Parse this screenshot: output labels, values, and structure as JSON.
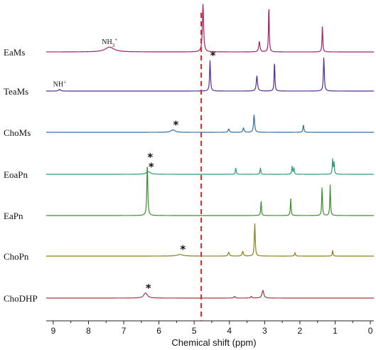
{
  "chart_data": {
    "type": "line",
    "title": "",
    "xlabel": "Chemical shift (ppm)",
    "ylabel": "",
    "xlim": [
      9.2,
      -0.1
    ],
    "x_ticks": [
      "9",
      "8",
      "7",
      "6",
      "5",
      "4",
      "3",
      "2",
      "1",
      "0"
    ],
    "reference_line": {
      "x": 4.8,
      "color": "#e02020",
      "style": "dashed"
    },
    "series": [
      {
        "name": "EaMs",
        "color": "#a0206a",
        "peaks": [
          {
            "x": 7.4,
            "h": 0.1,
            "w": 0.15
          },
          {
            "x": 4.75,
            "h": 1.0,
            "w": 0.02,
            "star": true
          },
          {
            "x": 3.15,
            "h": 0.22,
            "w": 0.02
          },
          {
            "x": 2.88,
            "h": 1.0,
            "w": 0.012
          },
          {
            "x": 1.36,
            "h": 0.55,
            "w": 0.012
          }
        ],
        "annotations": [
          {
            "x": 7.4,
            "text": "NH3+"
          }
        ]
      },
      {
        "name": "TeaMs",
        "color": "#5a2a9a",
        "peaks": [
          {
            "x": 8.82,
            "h": 0.05,
            "w": 0.03
          },
          {
            "x": 4.55,
            "h": 0.9,
            "w": 0.015,
            "star": true
          },
          {
            "x": 3.22,
            "h": 0.45,
            "w": 0.02
          },
          {
            "x": 2.72,
            "h": 0.9,
            "w": 0.012
          },
          {
            "x": 1.32,
            "h": 1.0,
            "w": 0.015
          }
        ],
        "annotations": [
          {
            "x": 8.82,
            "text": "NH+"
          }
        ]
      },
      {
        "name": "ChoMs",
        "color": "#2f6fa6",
        "peaks": [
          {
            "x": 5.6,
            "h": 0.09,
            "w": 0.07,
            "star": true
          },
          {
            "x": 4.02,
            "h": 0.13,
            "w": 0.02
          },
          {
            "x": 3.6,
            "h": 0.16,
            "w": 0.02
          },
          {
            "x": 3.3,
            "h": 0.65,
            "w": 0.018
          },
          {
            "x": 1.9,
            "h": 0.28,
            "w": 0.015
          }
        ]
      },
      {
        "name": "EoaPn",
        "color": "#2a9a78",
        "peaks": [
          {
            "x": 6.3,
            "h": 0.12,
            "w": 0.07,
            "star": true
          },
          {
            "x": 3.82,
            "h": 0.32,
            "w": 0.012
          },
          {
            "x": 3.12,
            "h": 0.32,
            "w": 0.012
          },
          {
            "x": 2.22,
            "h": 0.38,
            "w": 0.012
          },
          {
            "x": 2.17,
            "h": 0.3,
            "w": 0.012
          },
          {
            "x": 1.07,
            "h": 0.7,
            "w": 0.012
          },
          {
            "x": 1.03,
            "h": 0.55,
            "w": 0.012
          }
        ]
      },
      {
        "name": "EaPn",
        "color": "#3a8f2a",
        "peaks": [
          {
            "x": 6.33,
            "h": 1.0,
            "w": 0.015,
            "star": true
          },
          {
            "x": 3.1,
            "h": 0.28,
            "w": 0.012
          },
          {
            "x": 2.26,
            "h": 0.32,
            "w": 0.012
          },
          {
            "x": 1.37,
            "h": 0.55,
            "w": 0.012
          },
          {
            "x": 1.14,
            "h": 0.58,
            "w": 0.012
          }
        ]
      },
      {
        "name": "ChoPn",
        "color": "#8a7f1a",
        "peaks": [
          {
            "x": 5.4,
            "h": 0.05,
            "w": 0.1,
            "star": true
          },
          {
            "x": 4.02,
            "h": 0.12,
            "w": 0.02
          },
          {
            "x": 3.62,
            "h": 0.14,
            "w": 0.02
          },
          {
            "x": 3.28,
            "h": 1.0,
            "w": 0.015
          },
          {
            "x": 2.14,
            "h": 0.1,
            "w": 0.015
          },
          {
            "x": 1.07,
            "h": 0.18,
            "w": 0.012
          }
        ]
      },
      {
        "name": "ChoDHP",
        "color": "#b03040",
        "peaks": [
          {
            "x": 6.38,
            "h": 0.3,
            "w": 0.06,
            "star": true
          },
          {
            "x": 3.85,
            "h": 0.1,
            "w": 0.02
          },
          {
            "x": 3.38,
            "h": 0.1,
            "w": 0.02
          },
          {
            "x": 3.05,
            "h": 0.45,
            "w": 0.03
          }
        ]
      }
    ]
  }
}
